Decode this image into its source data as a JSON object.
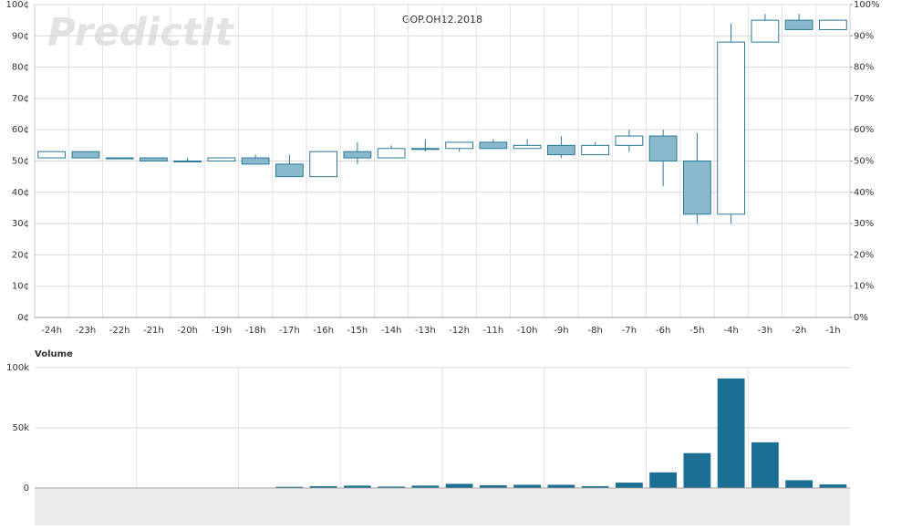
{
  "watermark": "PredictIt",
  "chart_data": [
    {
      "type": "candlestick",
      "title": "GOP.OH12.2018",
      "categories": [
        "-24h",
        "-23h",
        "-22h",
        "-21h",
        "-20h",
        "-19h",
        "-18h",
        "-17h",
        "-16h",
        "-15h",
        "-14h",
        "-13h",
        "-12h",
        "-11h",
        "-10h",
        "-9h",
        "-8h",
        "-7h",
        "-6h",
        "-5h",
        "-4h",
        "-3h",
        "-2h",
        "-1h"
      ],
      "open": [
        51,
        53,
        51,
        51,
        50,
        50,
        51,
        49,
        45,
        53,
        51,
        54,
        54,
        56,
        54,
        55,
        52,
        55,
        58,
        50,
        33,
        88,
        95,
        92
      ],
      "high": [
        53,
        53,
        51,
        51,
        51,
        51,
        52,
        52,
        53,
        56,
        55,
        57,
        56,
        57,
        57,
        58,
        56,
        60,
        60,
        59,
        94,
        97,
        97,
        95
      ],
      "low": [
        51,
        51,
        51,
        50,
        50,
        50,
        49,
        45,
        45,
        49,
        51,
        53,
        53,
        54,
        54,
        51,
        52,
        53,
        42,
        30,
        30,
        88,
        92,
        92
      ],
      "close": [
        53,
        51,
        51,
        50,
        50,
        51,
        49,
        45,
        53,
        51,
        54,
        54,
        56,
        54,
        55,
        52,
        55,
        58,
        50,
        33,
        88,
        95,
        92,
        95
      ],
      "up_color": "#ffffff",
      "down_color": "#8ab8cc",
      "line_color": "#2a7a99",
      "ylim": [
        0,
        100
      ],
      "yticks": [
        {
          "value": 0,
          "label": "0¢"
        },
        {
          "value": 10,
          "label": "10¢"
        },
        {
          "value": 20,
          "label": "20¢"
        },
        {
          "value": 30,
          "label": "30¢"
        },
        {
          "value": 40,
          "label": "40¢"
        },
        {
          "value": 50,
          "label": "50¢"
        },
        {
          "value": 60,
          "label": "60¢"
        },
        {
          "value": 70,
          "label": "70¢"
        },
        {
          "value": 80,
          "label": "80¢"
        },
        {
          "value": 90,
          "label": "90¢"
        },
        {
          "value": 100,
          "label": "100¢"
        }
      ],
      "y2lim": [
        0,
        100
      ],
      "y2ticks": [
        {
          "value": 0,
          "label": "0%"
        },
        {
          "value": 10,
          "label": "10%"
        },
        {
          "value": 20,
          "label": "20%"
        },
        {
          "value": 30,
          "label": "30%"
        },
        {
          "value": 40,
          "label": "40%"
        },
        {
          "value": 50,
          "label": "50%"
        },
        {
          "value": 60,
          "label": "60%"
        },
        {
          "value": 70,
          "label": "70%"
        },
        {
          "value": 80,
          "label": "80%"
        },
        {
          "value": 90,
          "label": "90%"
        },
        {
          "value": 100,
          "label": "100%"
        }
      ],
      "grid": true
    },
    {
      "type": "bar",
      "title": "Volume",
      "values": [
        300,
        300,
        300,
        300,
        300,
        300,
        300,
        1000,
        1500,
        2000,
        1200,
        2000,
        3500,
        2300,
        2700,
        2700,
        1500,
        4500,
        13000,
        29000,
        91000,
        38000,
        6500,
        3000
      ],
      "color": "#1a6f93",
      "ylim": [
        0,
        100000
      ],
      "yticks": [
        0,
        {
          "value": 50000,
          "label": "50k"
        },
        {
          "value": 100000,
          "label": "100k"
        }
      ],
      "grid": true
    }
  ]
}
